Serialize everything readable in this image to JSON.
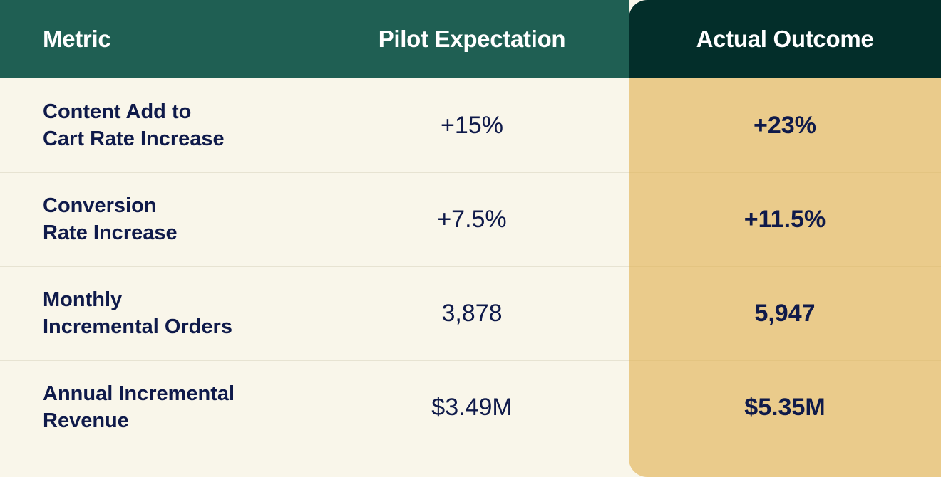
{
  "header": {
    "metric": "Metric",
    "pilot": "Pilot Expectation",
    "actual": "Actual Outcome"
  },
  "rows": [
    {
      "metric_line1": "Content Add to",
      "metric_line2": "Cart Rate Increase",
      "pilot": "+15%",
      "actual": "+23%"
    },
    {
      "metric_line1": "Conversion",
      "metric_line2": "Rate Increase",
      "pilot": "+7.5%",
      "actual": "+11.5%"
    },
    {
      "metric_line1": "Monthly",
      "metric_line2": "Incremental Orders",
      "pilot": "3,878",
      "actual": "5,947"
    },
    {
      "metric_line1": "Annual Incremental",
      "metric_line2": "Revenue",
      "pilot": "$3.49M",
      "actual": "$5.35M"
    }
  ],
  "colors": {
    "header_bg": "#1f5f53",
    "header_highlight_bg": "#032e2a",
    "body_bg": "#f9f6ea",
    "highlight_col_bg": "#eacb8b",
    "text": "#0f1a4a"
  }
}
